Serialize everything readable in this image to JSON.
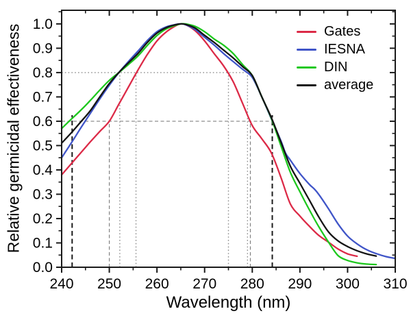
{
  "figure": {
    "background": "#ffffff",
    "text_color": "#000000",
    "axis_color": "#1a1a1a"
  },
  "chart_data": {
    "type": "line",
    "title": "",
    "xlabel": "Wavelength (nm)",
    "ylabel": "Relative germicidal effectiveness",
    "xlim": [
      240,
      310
    ],
    "ylim": [
      0,
      1.056
    ],
    "grid": "off",
    "legend_position": "top-right",
    "x_tick_values": [
      240,
      250,
      260,
      270,
      280,
      290,
      300,
      310
    ],
    "x_tick_labels": [
      "240",
      "250",
      "260",
      "270",
      "280",
      "290",
      "300",
      "310"
    ],
    "x_minor_ticks": [
      245,
      255,
      265,
      275,
      285,
      295,
      305
    ],
    "y_tick_values": [
      0.0,
      0.1,
      0.2,
      0.3,
      0.4,
      0.5,
      0.6,
      0.7,
      0.8,
      0.9,
      1.0
    ],
    "y_tick_labels": [
      "0.0",
      "0.1",
      "0.2",
      "0.3",
      "0.4",
      "0.5",
      "0.6",
      "0.7",
      "0.8",
      "0.9",
      "1.0"
    ],
    "y_minor_ticks": [
      0.05,
      0.15,
      0.25,
      0.35,
      0.45,
      0.55,
      0.65,
      0.75,
      0.85,
      0.95,
      1.05
    ],
    "series": [
      {
        "name": "Gates",
        "color": "#dc2a47",
        "points": [
          [
            240,
            0.38
          ],
          [
            242,
            0.425
          ],
          [
            244,
            0.47
          ],
          [
            246,
            0.515
          ],
          [
            248,
            0.558
          ],
          [
            250,
            0.6
          ],
          [
            252,
            0.67
          ],
          [
            254,
            0.74
          ],
          [
            256,
            0.81
          ],
          [
            258,
            0.875
          ],
          [
            260,
            0.93
          ],
          [
            262,
            0.968
          ],
          [
            264,
            0.993
          ],
          [
            265,
            1.0
          ],
          [
            266,
            0.997
          ],
          [
            268,
            0.972
          ],
          [
            270,
            0.93
          ],
          [
            272,
            0.878
          ],
          [
            274,
            0.827
          ],
          [
            276,
            0.762
          ],
          [
            278,
            0.672
          ],
          [
            280,
            0.582
          ],
          [
            282,
            0.528
          ],
          [
            284,
            0.47
          ],
          [
            286,
            0.37
          ],
          [
            288,
            0.26
          ],
          [
            290,
            0.21
          ],
          [
            292,
            0.168
          ],
          [
            294,
            0.13
          ],
          [
            296,
            0.103
          ],
          [
            298,
            0.075
          ],
          [
            300,
            0.055
          ],
          [
            302,
            0.045
          ]
        ]
      },
      {
        "name": "IESNA",
        "color": "#4055c8",
        "points": [
          [
            240,
            0.45
          ],
          [
            242,
            0.51
          ],
          [
            244,
            0.572
          ],
          [
            246,
            0.632
          ],
          [
            248,
            0.692
          ],
          [
            250,
            0.748
          ],
          [
            252,
            0.8
          ],
          [
            254,
            0.845
          ],
          [
            256,
            0.888
          ],
          [
            258,
            0.932
          ],
          [
            260,
            0.968
          ],
          [
            262,
            0.988
          ],
          [
            264,
            0.998
          ],
          [
            265,
            1.0
          ],
          [
            266,
            0.997
          ],
          [
            268,
            0.977
          ],
          [
            270,
            0.945
          ],
          [
            272,
            0.913
          ],
          [
            274,
            0.878
          ],
          [
            276,
            0.845
          ],
          [
            278,
            0.813
          ],
          [
            280,
            0.78
          ],
          [
            282,
            0.7
          ],
          [
            284,
            0.61
          ],
          [
            286,
            0.52
          ],
          [
            287,
            0.468
          ],
          [
            288,
            0.44
          ],
          [
            290,
            0.385
          ],
          [
            292,
            0.34
          ],
          [
            293,
            0.322
          ],
          [
            294,
            0.298
          ],
          [
            296,
            0.24
          ],
          [
            298,
            0.178
          ],
          [
            300,
            0.128
          ],
          [
            302,
            0.096
          ],
          [
            304,
            0.072
          ],
          [
            306,
            0.056
          ],
          [
            308,
            0.044
          ],
          [
            310,
            0.036
          ]
        ]
      },
      {
        "name": "DIN",
        "color": "#1ec81e",
        "points": [
          [
            240,
            0.57
          ],
          [
            242,
            0.608
          ],
          [
            244,
            0.645
          ],
          [
            246,
            0.685
          ],
          [
            248,
            0.728
          ],
          [
            250,
            0.768
          ],
          [
            252,
            0.8
          ],
          [
            254,
            0.833
          ],
          [
            256,
            0.868
          ],
          [
            258,
            0.912
          ],
          [
            260,
            0.952
          ],
          [
            262,
            0.98
          ],
          [
            264,
            0.995
          ],
          [
            265,
            1.0
          ],
          [
            266,
            1.0
          ],
          [
            268,
            0.99
          ],
          [
            270,
            0.968
          ],
          [
            272,
            0.938
          ],
          [
            274,
            0.912
          ],
          [
            276,
            0.878
          ],
          [
            278,
            0.832
          ],
          [
            280,
            0.788
          ],
          [
            282,
            0.7
          ],
          [
            284,
            0.612
          ],
          [
            286,
            0.5
          ],
          [
            288,
            0.39
          ],
          [
            290,
            0.31
          ],
          [
            292,
            0.235
          ],
          [
            294,
            0.165
          ],
          [
            296,
            0.103
          ],
          [
            298,
            0.048
          ],
          [
            300,
            0.028
          ],
          [
            302,
            0.018
          ],
          [
            304,
            0.013
          ],
          [
            306,
            0.011
          ]
        ]
      },
      {
        "name": "average",
        "color": "#141414",
        "points": [
          [
            240,
            0.51
          ],
          [
            242,
            0.552
          ],
          [
            244,
            0.597
          ],
          [
            246,
            0.643
          ],
          [
            248,
            0.7
          ],
          [
            250,
            0.755
          ],
          [
            252,
            0.8
          ],
          [
            254,
            0.84
          ],
          [
            256,
            0.878
          ],
          [
            258,
            0.924
          ],
          [
            260,
            0.962
          ],
          [
            262,
            0.985
          ],
          [
            264,
            0.997
          ],
          [
            265,
            1.0
          ],
          [
            266,
            0.998
          ],
          [
            268,
            0.983
          ],
          [
            270,
            0.953
          ],
          [
            272,
            0.924
          ],
          [
            274,
            0.892
          ],
          [
            276,
            0.86
          ],
          [
            278,
            0.824
          ],
          [
            280,
            0.788
          ],
          [
            282,
            0.7
          ],
          [
            284,
            0.615
          ],
          [
            286,
            0.515
          ],
          [
            288,
            0.415
          ],
          [
            290,
            0.345
          ],
          [
            292,
            0.275
          ],
          [
            294,
            0.205
          ],
          [
            296,
            0.145
          ],
          [
            298,
            0.108
          ],
          [
            300,
            0.085
          ],
          [
            302,
            0.068
          ],
          [
            304,
            0.055
          ],
          [
            306,
            0.046
          ]
        ]
      }
    ],
    "reference_lines": [
      {
        "orientation": "h",
        "value": 0.8,
        "style": "dotted",
        "from": 240,
        "to": 279.6
      },
      {
        "orientation": "h",
        "value": 0.6,
        "style": "dashed",
        "from": 240,
        "to": 284.2
      },
      {
        "orientation": "v",
        "value": 242.2,
        "style": "dashed-bold",
        "from": 0,
        "to": 0.625
      },
      {
        "orientation": "v",
        "value": 250.0,
        "style": "dashed",
        "from": 0,
        "to": 0.6
      },
      {
        "orientation": "v",
        "value": 252.2,
        "style": "dotted",
        "from": 0,
        "to": 0.8
      },
      {
        "orientation": "v",
        "value": 255.6,
        "style": "dotted",
        "from": 0,
        "to": 0.8
      },
      {
        "orientation": "v",
        "value": 275.0,
        "style": "dotted",
        "from": 0,
        "to": 0.8
      },
      {
        "orientation": "v",
        "value": 279.0,
        "style": "dotted",
        "from": 0,
        "to": 0.8
      },
      {
        "orientation": "v",
        "value": 279.6,
        "style": "dashed",
        "from": 0,
        "to": 0.6
      },
      {
        "orientation": "v",
        "value": 284.2,
        "style": "dashed-bold",
        "from": 0,
        "to": 0.625
      }
    ]
  }
}
